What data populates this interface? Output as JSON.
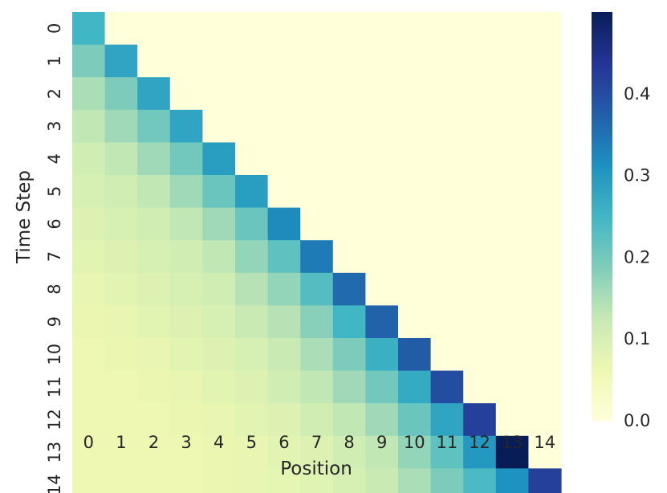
{
  "chart_data": {
    "type": "heatmap",
    "xlabel": "Position",
    "ylabel": "Time Step",
    "x_categories": [
      "0",
      "1",
      "2",
      "3",
      "4",
      "5",
      "6",
      "7",
      "8",
      "9",
      "10",
      "11",
      "12",
      "13",
      "14"
    ],
    "y_categories": [
      "0",
      "1",
      "2",
      "3",
      "4",
      "5",
      "6",
      "7",
      "8",
      "9",
      "10",
      "11",
      "12",
      "13",
      "14"
    ],
    "colormap": "YlGnBu",
    "vmin": 0.0,
    "vmax": 0.5,
    "colorbar_ticks": [
      "0.0",
      "0.1",
      "0.2",
      "0.3",
      "0.4"
    ],
    "values": [
      [
        0.25,
        0,
        0,
        0,
        0,
        0,
        0,
        0,
        0,
        0,
        0,
        0,
        0,
        0,
        0
      ],
      [
        0.19,
        0.28,
        0,
        0,
        0,
        0,
        0,
        0,
        0,
        0,
        0,
        0,
        0,
        0,
        0
      ],
      [
        0.15,
        0.19,
        0.28,
        0,
        0,
        0,
        0,
        0,
        0,
        0,
        0,
        0,
        0,
        0,
        0
      ],
      [
        0.13,
        0.16,
        0.2,
        0.28,
        0,
        0,
        0,
        0,
        0,
        0,
        0,
        0,
        0,
        0,
        0
      ],
      [
        0.11,
        0.13,
        0.16,
        0.2,
        0.29,
        0,
        0,
        0,
        0,
        0,
        0,
        0,
        0,
        0,
        0
      ],
      [
        0.1,
        0.11,
        0.13,
        0.16,
        0.21,
        0.29,
        0,
        0,
        0,
        0,
        0,
        0,
        0,
        0,
        0
      ],
      [
        0.09,
        0.1,
        0.11,
        0.13,
        0.16,
        0.21,
        0.32,
        0,
        0,
        0,
        0,
        0,
        0,
        0,
        0
      ],
      [
        0.08,
        0.09,
        0.1,
        0.11,
        0.13,
        0.17,
        0.22,
        0.34,
        0,
        0,
        0,
        0,
        0,
        0,
        0
      ],
      [
        0.07,
        0.08,
        0.09,
        0.1,
        0.11,
        0.14,
        0.17,
        0.23,
        0.36,
        0,
        0,
        0,
        0,
        0,
        0
      ],
      [
        0.065,
        0.07,
        0.08,
        0.09,
        0.1,
        0.12,
        0.14,
        0.18,
        0.25,
        0.37,
        0,
        0,
        0,
        0,
        0
      ],
      [
        0.06,
        0.065,
        0.07,
        0.08,
        0.09,
        0.1,
        0.12,
        0.15,
        0.19,
        0.26,
        0.38,
        0,
        0,
        0,
        0
      ],
      [
        0.06,
        0.06,
        0.065,
        0.07,
        0.08,
        0.09,
        0.11,
        0.13,
        0.16,
        0.2,
        0.27,
        0.4,
        0,
        0,
        0
      ],
      [
        0.06,
        0.06,
        0.06,
        0.065,
        0.07,
        0.08,
        0.09,
        0.11,
        0.13,
        0.16,
        0.21,
        0.28,
        0.42,
        0,
        0
      ],
      [
        0.06,
        0.06,
        0.06,
        0.06,
        0.065,
        0.07,
        0.08,
        0.09,
        0.11,
        0.13,
        0.17,
        0.22,
        0.3,
        0.5,
        0
      ],
      [
        0.06,
        0.06,
        0.06,
        0.06,
        0.065,
        0.07,
        0.075,
        0.085,
        0.1,
        0.12,
        0.15,
        0.19,
        0.24,
        0.31,
        0.42
      ]
    ]
  }
}
